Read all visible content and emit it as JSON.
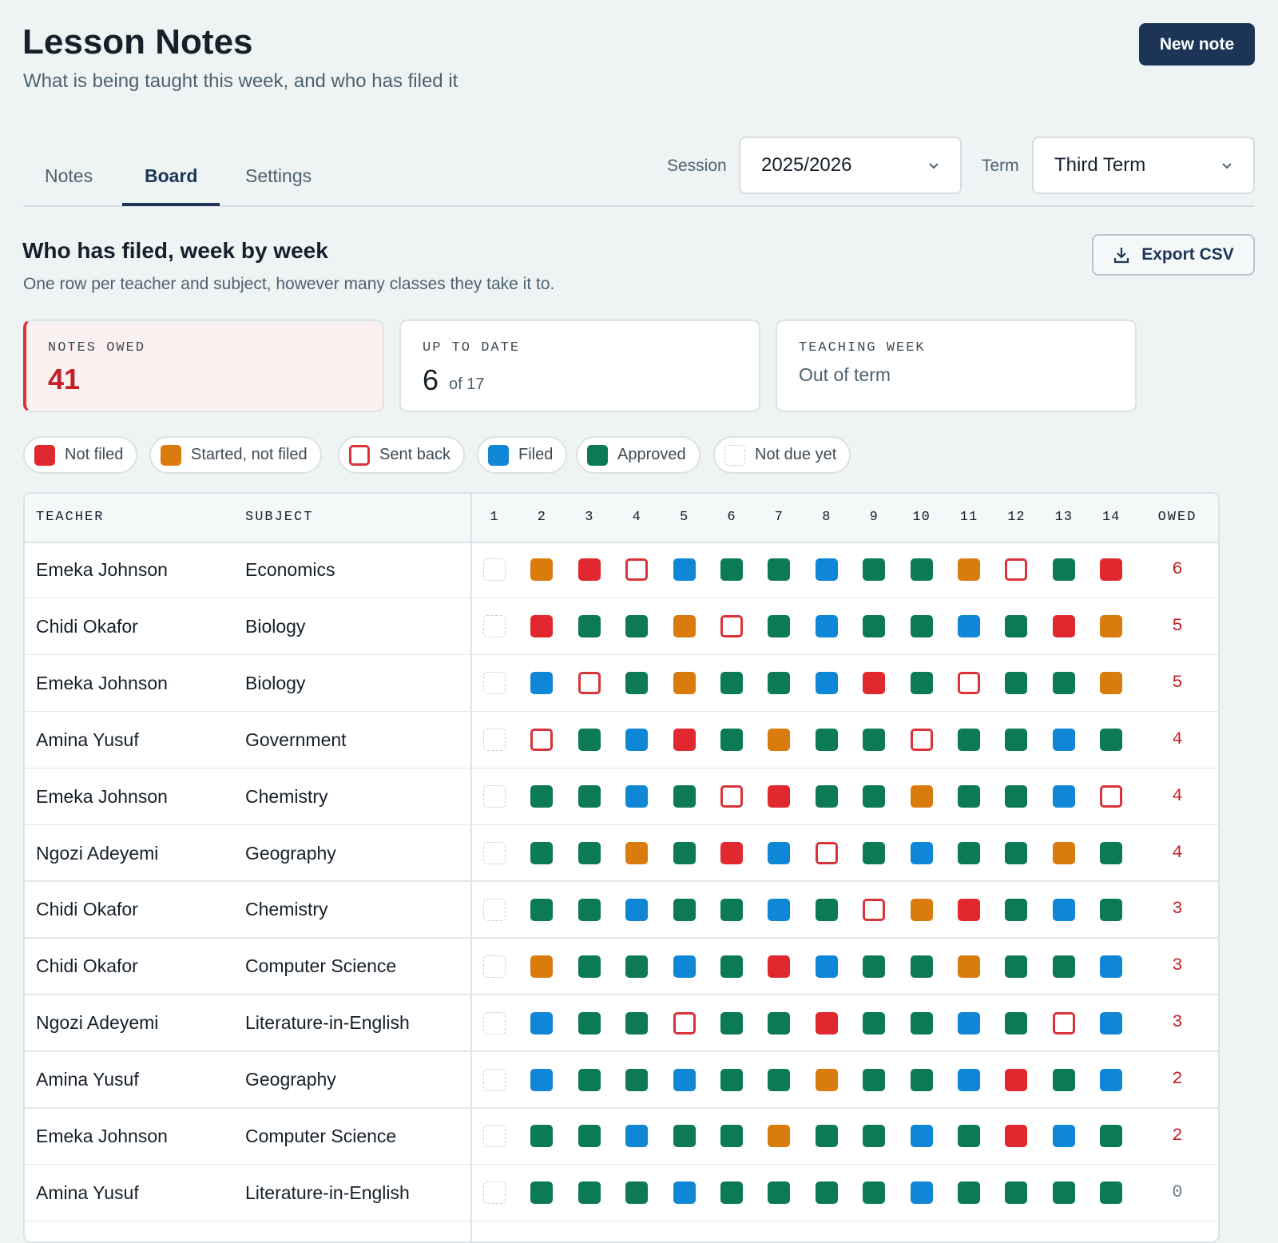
{
  "header": {
    "title": "Lesson Notes",
    "subtitle": "What is being taught this week, and who has filed it",
    "button": "New note"
  },
  "tabs": [
    "Notes",
    "Board",
    "Settings"
  ],
  "filters": {
    "session_label": "Session",
    "session": "2025/2026",
    "term_label": "Term",
    "term": "Third Term"
  },
  "section": {
    "title": "Who has filed, week by week",
    "subtitle": "One row per teacher and subject, however many classes they take it to.",
    "button": "Export CSV"
  },
  "stats": [
    {
      "label": "NOTES OWED",
      "value": 41
    },
    {
      "label": "UP TO DATE",
      "value": 6,
      "note": "of 17"
    },
    {
      "label": "TEACHING WEEK",
      "value": "Out of term"
    }
  ],
  "legend": [
    {
      "label": "Not filed",
      "color": "#e0282e",
      "kind": "fill"
    },
    {
      "label": "Started, not filed",
      "color": "#d97c0d",
      "kind": "fill"
    },
    {
      "label": "Sent back",
      "color": "#d9333a",
      "kind": "outline"
    },
    {
      "label": "Filed",
      "color": "#0f86d6",
      "kind": "fill"
    },
    {
      "label": "Approved",
      "color": "#0b7a55",
      "kind": "fill"
    },
    {
      "label": "Not due yet",
      "color": "#c9ced3",
      "kind": "dashed"
    }
  ],
  "table": {
    "headers": {
      "teacher": "TEACHER",
      "subject": "SUBJECT",
      "owed": "OWED"
    },
    "weeks": [
      1,
      2,
      3,
      4,
      5,
      6,
      7,
      8,
      9,
      10,
      11,
      12,
      13,
      14
    ],
    "rows": [
      {
        "teacher": "Emeka Johnson",
        "subject": "Economics",
        "cells": [
          5,
          1,
          0,
          2,
          3,
          4,
          4,
          3,
          4,
          4,
          1,
          2,
          4,
          0
        ],
        "owed": 6
      },
      {
        "teacher": "Chidi Okafor",
        "subject": "Biology",
        "cells": [
          5,
          0,
          4,
          4,
          1,
          2,
          4,
          3,
          4,
          4,
          3,
          4,
          0,
          1
        ],
        "owed": 5
      },
      {
        "teacher": "Emeka Johnson",
        "subject": "Biology",
        "cells": [
          5,
          3,
          2,
          4,
          1,
          4,
          4,
          3,
          0,
          4,
          2,
          4,
          4,
          1
        ],
        "owed": 5
      },
      {
        "teacher": "Amina Yusuf",
        "subject": "Government",
        "cells": [
          5,
          2,
          4,
          3,
          0,
          4,
          1,
          4,
          4,
          2,
          4,
          4,
          3,
          4
        ],
        "owed": 4
      },
      {
        "teacher": "Emeka Johnson",
        "subject": "Chemistry",
        "cells": [
          5,
          4,
          4,
          3,
          4,
          2,
          0,
          4,
          4,
          1,
          4,
          4,
          3,
          2
        ],
        "owed": 4
      },
      {
        "teacher": "Ngozi Adeyemi",
        "subject": "Geography",
        "cells": [
          5,
          4,
          4,
          1,
          4,
          0,
          3,
          2,
          4,
          3,
          4,
          4,
          1,
          4
        ],
        "owed": 4
      },
      {
        "teacher": "Chidi Okafor",
        "subject": "Chemistry",
        "cells": [
          5,
          4,
          4,
          3,
          4,
          4,
          3,
          4,
          2,
          1,
          0,
          4,
          3,
          4
        ],
        "owed": 3
      },
      {
        "teacher": "Chidi Okafor",
        "subject": "Computer Science",
        "cells": [
          5,
          1,
          4,
          4,
          3,
          4,
          0,
          3,
          4,
          4,
          1,
          4,
          4,
          3
        ],
        "owed": 3
      },
      {
        "teacher": "Ngozi Adeyemi",
        "subject": "Literature-in-English",
        "cells": [
          5,
          3,
          4,
          4,
          2,
          4,
          4,
          0,
          4,
          4,
          3,
          4,
          2,
          3
        ],
        "owed": 3
      },
      {
        "teacher": "Amina Yusuf",
        "subject": "Geography",
        "cells": [
          5,
          3,
          4,
          4,
          3,
          4,
          4,
          1,
          4,
          4,
          3,
          0,
          4,
          3
        ],
        "owed": 2
      },
      {
        "teacher": "Emeka Johnson",
        "subject": "Computer Science",
        "cells": [
          5,
          4,
          4,
          3,
          4,
          4,
          1,
          4,
          4,
          3,
          4,
          0,
          3,
          4
        ],
        "owed": 2
      },
      {
        "teacher": "Amina Yusuf",
        "subject": "Literature-in-English",
        "cells": [
          5,
          4,
          4,
          4,
          3,
          4,
          4,
          4,
          4,
          3,
          4,
          4,
          4,
          4
        ],
        "owed": 0
      }
    ]
  }
}
